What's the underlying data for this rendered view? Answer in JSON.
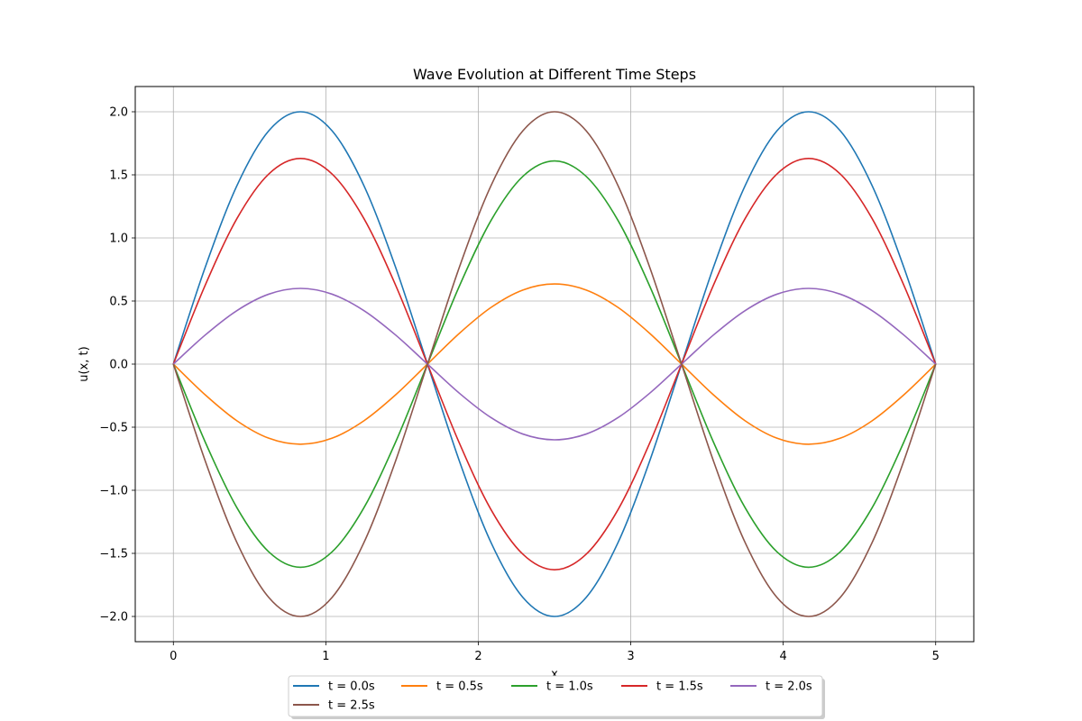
{
  "chart_data": {
    "type": "line",
    "title": "Wave Evolution at Different Time Steps",
    "xlabel": "x",
    "ylabel": "u(x, t)",
    "xlim": [
      -0.25,
      5.25
    ],
    "ylim": [
      -2.2,
      2.2
    ],
    "xticks": [
      0,
      1,
      2,
      3,
      4,
      5
    ],
    "xtick_labels": [
      "0",
      "1",
      "2",
      "3",
      "4",
      "5"
    ],
    "yticks": [
      -2.0,
      -1.5,
      -1.0,
      -0.5,
      0.0,
      0.5,
      1.0,
      1.5,
      2.0
    ],
    "ytick_labels": [
      "−2.0",
      "−1.5",
      "−1.0",
      "−0.5",
      "0.0",
      "0.5",
      "1.0",
      "1.5",
      "2.0"
    ],
    "grid": true,
    "legend_position": "bottom-center, below axes",
    "x": [
      0,
      0.2083,
      0.4167,
      0.625,
      0.8333,
      1.0417,
      1.25,
      1.4583,
      1.6667,
      1.875,
      2.0833,
      2.2917,
      2.5,
      2.7083,
      2.9167,
      3.125,
      3.3333,
      3.5417,
      3.75,
      3.9583,
      4.1667,
      4.375,
      4.5833,
      4.7917,
      5.0
    ],
    "series": [
      {
        "name": "t = 0.0s",
        "color": "#1f77b4",
        "values": [
          0,
          0.765,
          1.414,
          1.848,
          2.0,
          1.848,
          1.414,
          0.765,
          0,
          -0.765,
          -1.414,
          -1.848,
          -2.0,
          -1.848,
          -1.414,
          -0.765,
          0,
          0.765,
          1.414,
          1.848,
          2.0,
          1.848,
          1.414,
          0.765,
          0
        ]
      },
      {
        "name": "t = 0.5s",
        "color": "#ff7f0e",
        "values": [
          0,
          -0.243,
          -0.449,
          -0.587,
          -0.635,
          -0.587,
          -0.449,
          -0.243,
          0,
          0.243,
          0.449,
          0.587,
          0.635,
          0.587,
          0.449,
          0.243,
          0,
          -0.243,
          -0.449,
          -0.587,
          -0.635,
          -0.587,
          -0.449,
          -0.243,
          0
        ]
      },
      {
        "name": "t = 1.0s",
        "color": "#2ca02c",
        "values": [
          0,
          -0.616,
          -1.138,
          -1.487,
          -1.61,
          -1.487,
          -1.138,
          -0.616,
          0,
          0.616,
          1.138,
          1.487,
          1.61,
          1.487,
          1.138,
          0.616,
          0,
          -0.616,
          -1.138,
          -1.487,
          -1.61,
          -1.487,
          -1.138,
          -0.616,
          0
        ]
      },
      {
        "name": "t = 1.5s",
        "color": "#d62728",
        "values": [
          0,
          0.624,
          1.153,
          1.506,
          1.63,
          1.506,
          1.153,
          0.624,
          0,
          -0.624,
          -1.153,
          -1.506,
          -1.63,
          -1.506,
          -1.153,
          -0.624,
          0,
          0.624,
          1.153,
          1.506,
          1.63,
          1.506,
          1.153,
          0.624,
          0
        ]
      },
      {
        "name": "t = 2.0s",
        "color": "#9467bd",
        "values": [
          0,
          0.23,
          0.424,
          0.554,
          0.6,
          0.554,
          0.424,
          0.23,
          0,
          -0.23,
          -0.424,
          -0.554,
          -0.6,
          -0.554,
          -0.424,
          -0.23,
          0,
          0.23,
          0.424,
          0.554,
          0.6,
          0.554,
          0.424,
          0.23,
          0
        ]
      },
      {
        "name": "t = 2.5s",
        "color": "#8c564b",
        "values": [
          0,
          -0.765,
          -1.414,
          -1.848,
          -2.0,
          -1.848,
          -1.414,
          -0.765,
          0,
          0.765,
          1.414,
          1.848,
          2.0,
          1.848,
          1.414,
          0.765,
          0,
          -0.765,
          -1.414,
          -1.848,
          -2.0,
          -1.848,
          -1.414,
          -0.765,
          0
        ]
      }
    ]
  }
}
